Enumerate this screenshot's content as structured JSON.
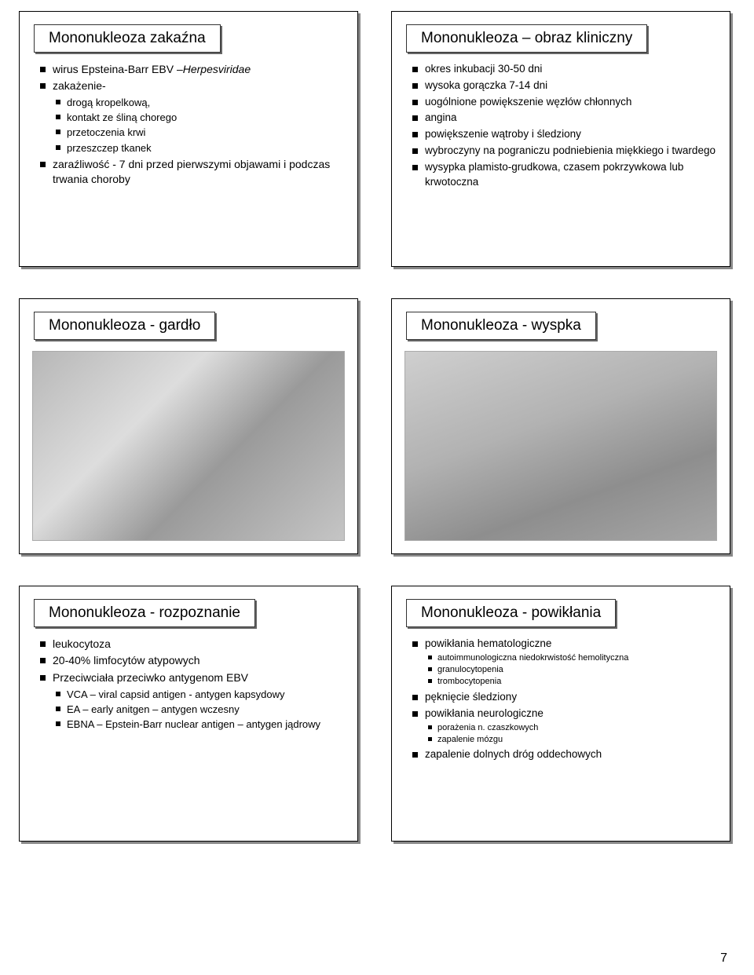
{
  "page_number": "7",
  "slides": {
    "s1": {
      "title": "Mononukleoza zakaźna",
      "items": [
        {
          "t": "wirus Epsteina-Barr EBV –",
          "i": "Herpesviridae"
        },
        {
          "t": "zakażenie-",
          "sub": [
            {
              "t": "drogą kropelkową,"
            },
            {
              "t": "kontakt ze śliną chorego"
            },
            {
              "t": "przetoczenia krwi"
            },
            {
              "t": "przeszczep tkanek"
            }
          ]
        },
        {
          "t": "zaraźliwość - 7 dni przed pierwszymi objawami i podczas trwania choroby"
        }
      ]
    },
    "s2": {
      "title": "Mononukleoza – obraz kliniczny",
      "items": [
        {
          "t": "okres inkubacji 30-50 dni"
        },
        {
          "t": "wysoka gorączka 7-14 dni"
        },
        {
          "t": "uogólnione powiększenie węzłów chłonnych"
        },
        {
          "t": "angina"
        },
        {
          "t": "powiększenie wątroby i śledziony"
        },
        {
          "t": "wybroczyny na pograniczu podniebienia miękkiego i twardego"
        },
        {
          "t": "wysypka plamisto-grudkowa, czasem pokrzywkowa lub krwotoczna"
        }
      ]
    },
    "s3": {
      "title": "Mononukleoza - gardło"
    },
    "s4": {
      "title": "Mononukleoza - wyspka"
    },
    "s5": {
      "title": "Mononukleoza - rozpoznanie",
      "items": [
        {
          "t": "leukocytoza"
        },
        {
          "t": "20-40% limfocytów atypowych"
        },
        {
          "t": "Przeciwciała przeciwko antygenom EBV",
          "sub": [
            {
              "t": "VCA – viral capsid antigen - antygen kapsydowy"
            },
            {
              "t": "EA – early anitgen – antygen wczesny"
            },
            {
              "t": "EBNA – Epstein-Barr nuclear antigen – antygen jądrowy"
            }
          ]
        }
      ]
    },
    "s6": {
      "title": "Mononukleoza - powikłania",
      "items": [
        {
          "t": "powikłania hematologiczne",
          "sub": [
            {
              "t": "autoimmunologiczna niedokrwistość hemolityczna"
            },
            {
              "t": "granulocytopenia"
            },
            {
              "t": "trombocytopenia"
            }
          ]
        },
        {
          "t": "pęknięcie śledziony"
        },
        {
          "t": "powikłania neurologiczne",
          "sub": [
            {
              "t": "porażenia n. czaszkowych"
            },
            {
              "t": "zapalenie mózgu"
            }
          ]
        },
        {
          "t": "zapalenie dolnych dróg oddechowych"
        }
      ]
    }
  }
}
